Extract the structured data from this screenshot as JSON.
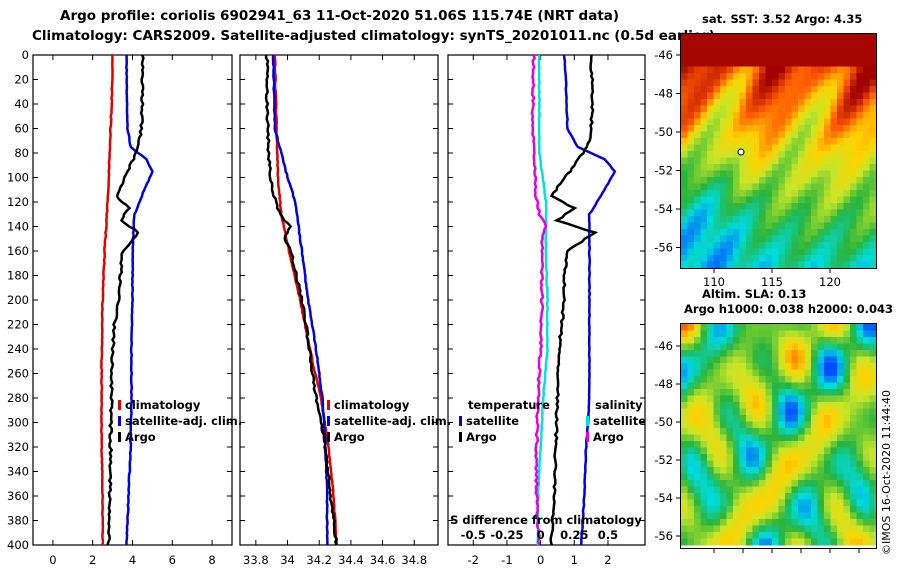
{
  "title_line1": "Argo profile: coriolis 6902941_63 11-Oct-2020 51.06S 115.74E (NRT data)",
  "title_line2": "Climatology: CARS2009. Satellite-adjusted climatology: synTS_20201011.nc (0.5d earlier)",
  "colors": {
    "climatology": "#e00000",
    "satellite": "#0000e0",
    "argo": "#000000",
    "satellite_salinity": "#00e0e0",
    "argo_salinity": "#e000e0"
  },
  "chart_data": [
    {
      "type": "line",
      "name": "temperature-profile",
      "xlim": [
        -1,
        9
      ],
      "ylim": [
        400,
        0
      ],
      "xticks": [
        "0",
        "2",
        "4",
        "6",
        "8"
      ],
      "xtick_values": [
        0,
        2,
        4,
        6,
        8
      ],
      "yticks": [
        "0",
        "20",
        "40",
        "60",
        "80",
        "100",
        "120",
        "140",
        "160",
        "180",
        "200",
        "220",
        "240",
        "260",
        "280",
        "300",
        "320",
        "340",
        "360",
        "380",
        "400"
      ],
      "ytick_values": [
        0,
        20,
        40,
        60,
        80,
        100,
        120,
        140,
        160,
        180,
        200,
        220,
        240,
        260,
        280,
        300,
        320,
        340,
        360,
        380,
        400
      ],
      "legend": [
        "climatology",
        "satellite-adj. clim.",
        "Argo"
      ],
      "series": [
        {
          "name": "climatology",
          "color_key": "climatology",
          "depth": [
            0,
            40,
            80,
            120,
            160,
            200,
            240,
            280,
            320,
            360,
            400
          ],
          "values": [
            3.0,
            2.95,
            2.85,
            2.75,
            2.6,
            2.5,
            2.45,
            2.45,
            2.45,
            2.5,
            2.5
          ]
        },
        {
          "name": "satellite-adj. clim.",
          "color_key": "satellite",
          "depth": [
            0,
            20,
            60,
            75,
            85,
            95,
            110,
            130,
            160,
            200,
            240,
            280,
            320,
            360,
            400
          ],
          "values": [
            3.7,
            3.7,
            3.75,
            3.9,
            4.7,
            5.0,
            4.6,
            4.1,
            4.0,
            4.0,
            3.95,
            3.95,
            3.9,
            3.8,
            3.7
          ]
        },
        {
          "name": "Argo",
          "color_key": "argo",
          "depth": [
            0,
            30,
            60,
            75,
            90,
            105,
            115,
            125,
            135,
            145,
            160,
            180,
            200,
            220,
            240,
            260,
            280,
            300,
            320,
            340,
            360,
            380,
            400
          ],
          "values": [
            4.5,
            4.5,
            4.45,
            4.3,
            3.9,
            3.5,
            3.2,
            3.8,
            3.4,
            4.3,
            3.5,
            3.4,
            3.3,
            3.1,
            3.0,
            2.95,
            2.95,
            2.9,
            2.9,
            2.9,
            2.85,
            2.85,
            2.8
          ]
        }
      ]
    },
    {
      "type": "line",
      "name": "salinity-profile",
      "xlim": [
        33.7,
        34.95
      ],
      "ylim": [
        400,
        0
      ],
      "xticks": [
        "33.8",
        "34",
        "34.2",
        "34.4",
        "34.6",
        "34.8"
      ],
      "xtick_values": [
        33.8,
        34.0,
        34.2,
        34.4,
        34.6,
        34.8
      ],
      "legend": [
        "climatology",
        "satellite-adj. clim.",
        "Argo"
      ],
      "series": [
        {
          "name": "climatology",
          "color_key": "climatology",
          "depth": [
            0,
            60,
            100,
            130,
            160,
            200,
            240,
            280,
            320,
            360,
            400
          ],
          "values": [
            33.92,
            33.93,
            33.94,
            33.96,
            34.01,
            34.08,
            34.14,
            34.21,
            34.26,
            34.29,
            34.31
          ]
        },
        {
          "name": "satellite-adj. clim.",
          "color_key": "satellite",
          "depth": [
            0,
            60,
            85,
            100,
            120,
            160,
            200,
            240,
            280,
            320,
            360,
            400
          ],
          "values": [
            33.91,
            33.92,
            33.97,
            34.0,
            34.05,
            34.09,
            34.13,
            34.18,
            34.22,
            34.24,
            34.25,
            34.25
          ]
        },
        {
          "name": "Argo",
          "color_key": "argo",
          "depth": [
            0,
            40,
            80,
            110,
            130,
            140,
            150,
            160,
            200,
            240,
            280,
            320,
            360,
            400
          ],
          "values": [
            33.87,
            33.87,
            33.88,
            33.9,
            33.95,
            34.02,
            33.98,
            34.02,
            34.09,
            34.14,
            34.18,
            34.24,
            34.27,
            34.31
          ]
        }
      ]
    },
    {
      "type": "line",
      "name": "difference-from-climatology",
      "xlim": [
        -2.75,
        3.1
      ],
      "ylim": [
        400,
        0
      ],
      "xticks": [
        "-2",
        "-1",
        "0",
        "1",
        "2"
      ],
      "xtick_values": [
        -2,
        -1,
        0,
        1,
        2
      ],
      "secondary_xlabel": "S difference from climatology",
      "secondary_xticks": [
        "-0.5",
        "-0.25",
        "0",
        "0.25",
        "0.5"
      ],
      "secondary_xtick_values": [
        -0.5,
        -0.25,
        0,
        0.25,
        0.5
      ],
      "secondary_xlim": [
        -0.6875,
        0.775
      ],
      "legend_temperature_header": "temperature",
      "legend_salinity_header": "salinity",
      "legend": [
        "satellite",
        "Argo",
        "satellite",
        "Argo"
      ],
      "series": [
        {
          "name": "temperature satellite",
          "color_key": "satellite",
          "axis": "T",
          "depth": [
            0,
            20,
            60,
            75,
            85,
            95,
            110,
            130,
            160,
            200,
            240,
            280,
            320,
            360,
            400
          ],
          "values": [
            0.7,
            0.75,
            0.8,
            1.1,
            1.9,
            2.2,
            1.9,
            1.45,
            1.45,
            1.45,
            1.45,
            1.45,
            1.35,
            1.3,
            1.2
          ]
        },
        {
          "name": "temperature Argo",
          "color_key": "argo",
          "axis": "T",
          "depth": [
            0,
            40,
            60,
            75,
            90,
            105,
            115,
            125,
            135,
            145,
            160,
            180,
            200,
            240,
            280,
            320,
            360,
            400
          ],
          "values": [
            1.5,
            1.55,
            1.5,
            1.4,
            1.0,
            0.6,
            0.3,
            1.0,
            0.5,
            1.6,
            0.8,
            0.7,
            0.7,
            0.55,
            0.5,
            0.45,
            0.4,
            0.3
          ]
        },
        {
          "name": "salinity satellite",
          "color_key": "satellite_salinity",
          "axis": "S",
          "depth": [
            0,
            80,
            120,
            160,
            200,
            240,
            280,
            320,
            360,
            400
          ],
          "values": [
            -0.01,
            -0.01,
            0.04,
            0.04,
            0.05,
            0.05,
            0.02,
            0.0,
            -0.02,
            -0.02
          ]
        },
        {
          "name": "salinity Argo",
          "color_key": "argo_salinity",
          "axis": "S",
          "depth": [
            0,
            60,
            110,
            130,
            140,
            150,
            160,
            200,
            240,
            280,
            320,
            360,
            400
          ],
          "values": [
            -0.05,
            -0.06,
            -0.04,
            -0.01,
            0.04,
            0.01,
            0.01,
            0.01,
            0.0,
            -0.02,
            -0.03,
            -0.03,
            -0.01
          ]
        }
      ]
    }
  ],
  "sst_map": {
    "title": "sat. SST: 3.52 Argo: 4.35",
    "yticks": [
      "-46",
      "-48",
      "-50",
      "-52",
      "-54",
      "-56"
    ],
    "xticks": [
      "110",
      "115",
      "120"
    ]
  },
  "sla_map": {
    "title_line1": "Altim. SLA: 0.13",
    "title_line2": "Argo h1000: 0.038 h2000: 0.043",
    "yticks": [
      "-46",
      "-48",
      "-50",
      "-52",
      "-54",
      "-56"
    ]
  },
  "credit": "©IMOS 16-Oct-2020 11:44:40"
}
